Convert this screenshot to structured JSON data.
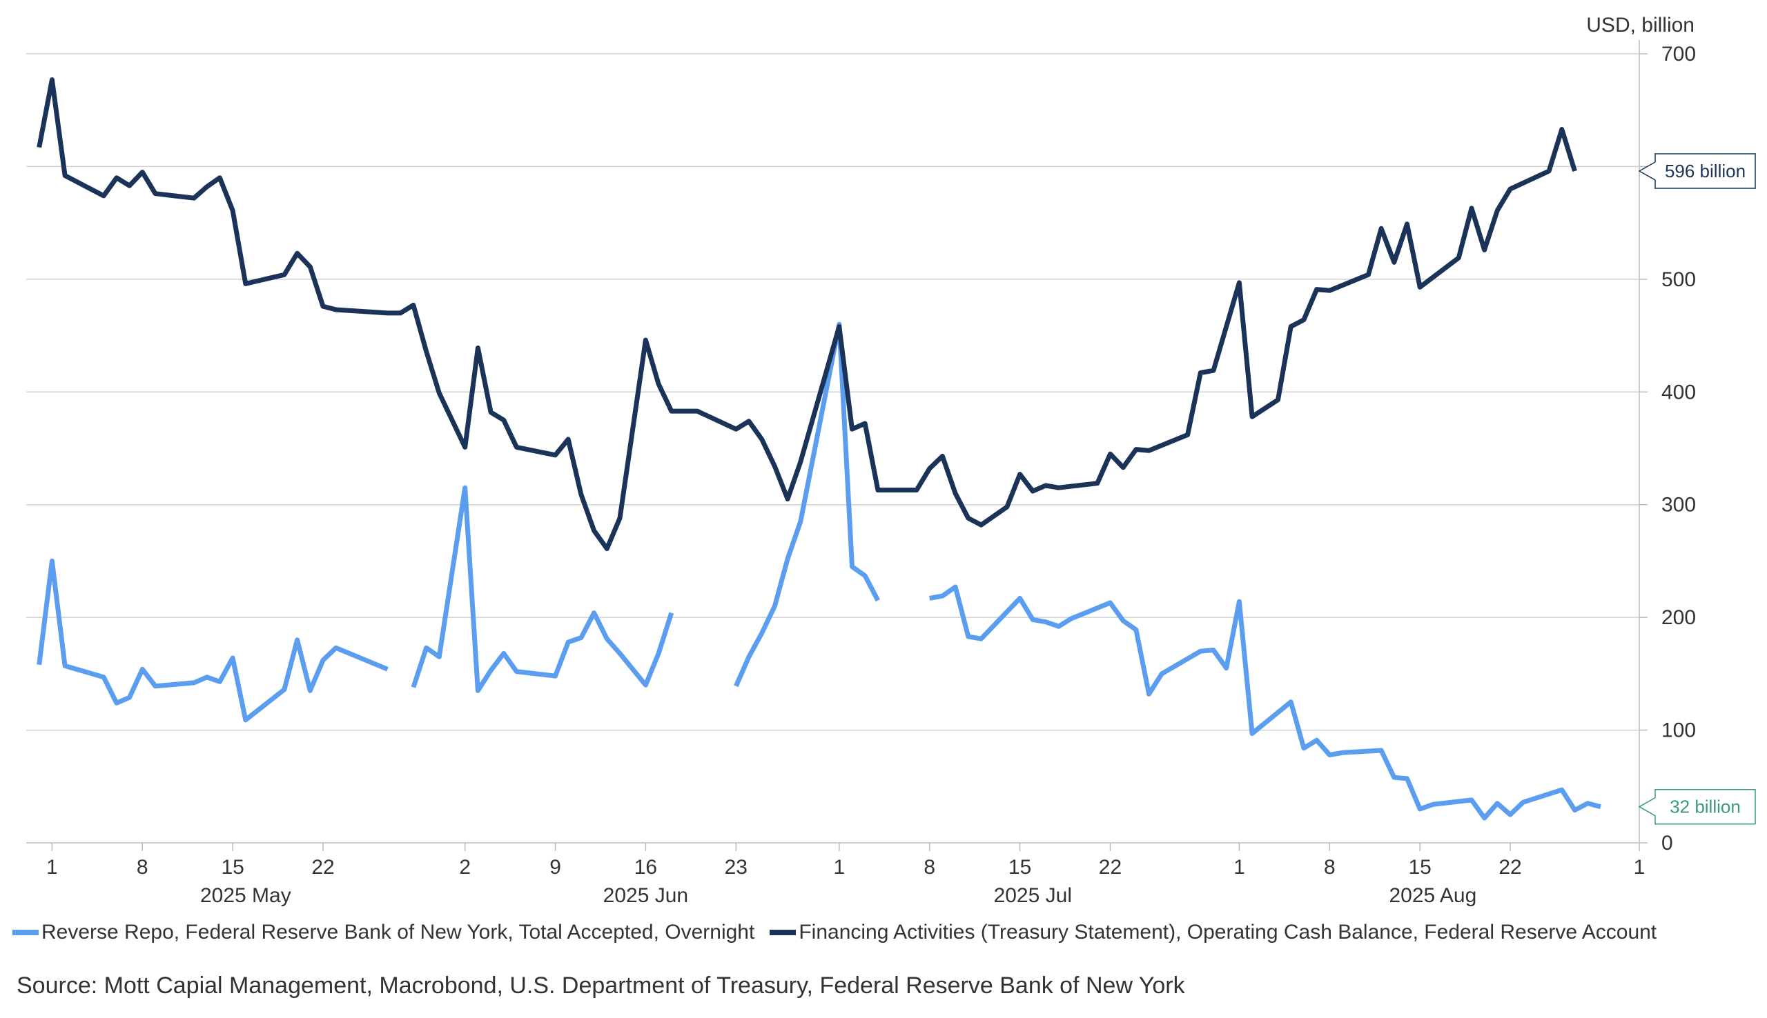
{
  "chart_data": {
    "type": "line",
    "y_unit_label": "USD, billion",
    "ylim": [
      0,
      700
    ],
    "y_ticks": [
      0,
      100,
      200,
      300,
      400,
      500,
      600,
      700
    ],
    "grid": true,
    "x_range": [
      "2025-04-29",
      "2025-09-01"
    ],
    "x_ticks": [
      {
        "date": "2025-05-01",
        "label": "1"
      },
      {
        "date": "2025-05-08",
        "label": "8"
      },
      {
        "date": "2025-05-15",
        "label": "15"
      },
      {
        "date": "2025-05-22",
        "label": "22"
      },
      {
        "date": "2025-06-02",
        "label": "2"
      },
      {
        "date": "2025-06-09",
        "label": "9"
      },
      {
        "date": "2025-06-16",
        "label": "16"
      },
      {
        "date": "2025-06-23",
        "label": "23"
      },
      {
        "date": "2025-07-01",
        "label": "1"
      },
      {
        "date": "2025-07-08",
        "label": "8"
      },
      {
        "date": "2025-07-15",
        "label": "15"
      },
      {
        "date": "2025-07-22",
        "label": "22"
      },
      {
        "date": "2025-08-01",
        "label": "1"
      },
      {
        "date": "2025-08-08",
        "label": "8"
      },
      {
        "date": "2025-08-15",
        "label": "15"
      },
      {
        "date": "2025-08-22",
        "label": "22"
      },
      {
        "date": "2025-09-01",
        "label": "1"
      }
    ],
    "month_labels": [
      {
        "date": "2025-05-16",
        "label": "2025 May"
      },
      {
        "date": "2025-06-16",
        "label": "2025 Jun"
      },
      {
        "date": "2025-07-16",
        "label": "2025 Jul"
      },
      {
        "date": "2025-08-16",
        "label": "2025 Aug"
      }
    ],
    "legend_position": "bottom",
    "series": [
      {
        "name": "Reverse Repo, Federal Reserve Bank of New York, Total Accepted, Overnight",
        "color": "#5b9ef0",
        "end_label": "32 billion",
        "end_label_color": "#3a9a80",
        "points": [
          [
            "2025-04-30",
            158
          ],
          [
            "2025-05-01",
            250
          ],
          [
            "2025-05-02",
            157
          ],
          [
            "2025-05-05",
            147
          ],
          [
            "2025-05-06",
            124
          ],
          [
            "2025-05-07",
            129
          ],
          [
            "2025-05-08",
            154
          ],
          [
            "2025-05-09",
            139
          ],
          [
            "2025-05-12",
            142
          ],
          [
            "2025-05-13",
            147
          ],
          [
            "2025-05-14",
            143
          ],
          [
            "2025-05-15",
            164
          ],
          [
            "2025-05-16",
            109
          ],
          [
            "2025-05-19",
            136
          ],
          [
            "2025-05-20",
            180
          ],
          [
            "2025-05-21",
            135
          ],
          [
            "2025-05-22",
            162
          ],
          [
            "2025-05-23",
            173
          ],
          [
            "2025-05-27",
            154
          ],
          null,
          [
            "2025-05-29",
            138
          ],
          [
            "2025-05-30",
            173
          ],
          [
            "2025-05-31",
            165
          ],
          [
            "2025-06-02",
            315
          ],
          [
            "2025-06-03",
            135
          ],
          [
            "2025-06-04",
            153
          ],
          [
            "2025-06-05",
            168
          ],
          [
            "2025-06-06",
            152
          ],
          [
            "2025-06-09",
            148
          ],
          [
            "2025-06-10",
            178
          ],
          [
            "2025-06-11",
            182
          ],
          [
            "2025-06-12",
            204
          ],
          [
            "2025-06-13",
            181
          ],
          [
            "2025-06-14",
            168
          ],
          [
            "2025-06-16",
            140
          ],
          [
            "2025-06-17",
            168
          ],
          [
            "2025-06-18",
            204
          ],
          null,
          [
            "2025-06-23",
            139
          ],
          [
            "2025-06-24",
            165
          ],
          [
            "2025-06-25",
            186
          ],
          [
            "2025-06-26",
            210
          ],
          [
            "2025-06-27",
            252
          ],
          [
            "2025-06-28",
            285
          ],
          [
            "2025-07-01",
            460
          ],
          [
            "2025-07-02",
            245
          ],
          [
            "2025-07-03",
            237
          ],
          [
            "2025-07-04",
            215
          ],
          null,
          [
            "2025-07-08",
            217
          ],
          [
            "2025-07-09",
            219
          ],
          [
            "2025-07-10",
            227
          ],
          [
            "2025-07-11",
            183
          ],
          [
            "2025-07-12",
            181
          ],
          [
            "2025-07-15",
            217
          ],
          [
            "2025-07-16",
            198
          ],
          [
            "2025-07-17",
            196
          ],
          [
            "2025-07-18",
            192
          ],
          [
            "2025-07-19",
            199
          ],
          [
            "2025-07-22",
            213
          ],
          [
            "2025-07-23",
            197
          ],
          [
            "2025-07-24",
            189
          ],
          [
            "2025-07-25",
            132
          ],
          [
            "2025-07-26",
            150
          ],
          [
            "2025-07-29",
            170
          ],
          [
            "2025-07-30",
            171
          ],
          [
            "2025-07-31",
            155
          ],
          [
            "2025-08-01",
            214
          ],
          [
            "2025-08-02",
            97
          ],
          [
            "2025-08-05",
            125
          ],
          [
            "2025-08-06",
            84
          ],
          [
            "2025-08-07",
            91
          ],
          [
            "2025-08-08",
            78
          ],
          [
            "2025-08-09",
            80
          ],
          [
            "2025-08-12",
            82
          ],
          [
            "2025-08-13",
            58
          ],
          [
            "2025-08-14",
            57
          ],
          [
            "2025-08-15",
            30
          ],
          [
            "2025-08-16",
            34
          ],
          [
            "2025-08-19",
            38
          ],
          [
            "2025-08-20",
            22
          ],
          [
            "2025-08-21",
            35
          ],
          [
            "2025-08-22",
            25
          ],
          [
            "2025-08-23",
            36
          ],
          [
            "2025-08-26",
            47
          ],
          [
            "2025-08-27",
            29
          ],
          [
            "2025-08-28",
            35
          ],
          [
            "2025-08-29",
            32
          ]
        ]
      },
      {
        "name": "Financing Activities (Treasury Statement), Operating Cash Balance, Federal Reserve Account",
        "color": "#1b3358",
        "end_label": "596 billion",
        "end_label_color": "#1b3358",
        "points": [
          [
            "2025-04-30",
            617
          ],
          [
            "2025-05-01",
            677
          ],
          [
            "2025-05-02",
            592
          ],
          [
            "2025-05-05",
            574
          ],
          [
            "2025-05-06",
            590
          ],
          [
            "2025-05-07",
            583
          ],
          [
            "2025-05-08",
            595
          ],
          [
            "2025-05-09",
            576
          ],
          [
            "2025-05-12",
            572
          ],
          [
            "2025-05-13",
            582
          ],
          [
            "2025-05-14",
            590
          ],
          [
            "2025-05-15",
            561
          ],
          [
            "2025-05-16",
            496
          ],
          [
            "2025-05-19",
            504
          ],
          [
            "2025-05-20",
            523
          ],
          [
            "2025-05-21",
            511
          ],
          [
            "2025-05-22",
            476
          ],
          [
            "2025-05-23",
            473
          ],
          [
            "2025-05-27",
            470
          ],
          [
            "2025-05-28",
            470
          ],
          [
            "2025-05-29",
            477
          ],
          [
            "2025-05-30",
            436
          ],
          [
            "2025-05-31",
            399
          ],
          [
            "2025-06-02",
            351
          ],
          [
            "2025-06-03",
            439
          ],
          [
            "2025-06-04",
            382
          ],
          [
            "2025-06-05",
            375
          ],
          [
            "2025-06-06",
            351
          ],
          [
            "2025-06-09",
            344
          ],
          [
            "2025-06-10",
            358
          ],
          [
            "2025-06-11",
            309
          ],
          [
            "2025-06-12",
            277
          ],
          [
            "2025-06-13",
            261
          ],
          [
            "2025-06-14",
            288
          ],
          [
            "2025-06-16",
            446
          ],
          [
            "2025-06-17",
            407
          ],
          [
            "2025-06-18",
            383
          ],
          [
            "2025-06-20",
            383
          ],
          [
            "2025-06-23",
            367
          ],
          [
            "2025-06-24",
            374
          ],
          [
            "2025-06-25",
            358
          ],
          [
            "2025-06-26",
            334
          ],
          [
            "2025-06-27",
            305
          ],
          [
            "2025-06-28",
            338
          ],
          [
            "2025-07-01",
            458
          ],
          [
            "2025-07-02",
            367
          ],
          [
            "2025-07-03",
            372
          ],
          [
            "2025-07-04",
            313
          ],
          [
            "2025-07-07",
            313
          ],
          [
            "2025-07-08",
            332
          ],
          [
            "2025-07-09",
            343
          ],
          [
            "2025-07-10",
            310
          ],
          [
            "2025-07-11",
            288
          ],
          [
            "2025-07-12",
            282
          ],
          [
            "2025-07-14",
            298
          ],
          [
            "2025-07-15",
            327
          ],
          [
            "2025-07-16",
            312
          ],
          [
            "2025-07-17",
            317
          ],
          [
            "2025-07-18",
            315
          ],
          [
            "2025-07-21",
            319
          ],
          [
            "2025-07-22",
            345
          ],
          [
            "2025-07-23",
            333
          ],
          [
            "2025-07-24",
            349
          ],
          [
            "2025-07-25",
            348
          ],
          [
            "2025-07-28",
            362
          ],
          [
            "2025-07-29",
            417
          ],
          [
            "2025-07-30",
            419
          ],
          [
            "2025-08-01",
            497
          ],
          [
            "2025-08-02",
            378
          ],
          [
            "2025-08-04",
            393
          ],
          [
            "2025-08-05",
            458
          ],
          [
            "2025-08-06",
            464
          ],
          [
            "2025-08-07",
            491
          ],
          [
            "2025-08-08",
            490
          ],
          [
            "2025-08-11",
            504
          ],
          [
            "2025-08-12",
            545
          ],
          [
            "2025-08-13",
            515
          ],
          [
            "2025-08-14",
            549
          ],
          [
            "2025-08-15",
            493
          ],
          [
            "2025-08-18",
            519
          ],
          [
            "2025-08-19",
            563
          ],
          [
            "2025-08-20",
            526
          ],
          [
            "2025-08-21",
            561
          ],
          [
            "2025-08-22",
            580
          ],
          [
            "2025-08-25",
            596
          ],
          [
            "2025-08-26",
            633
          ],
          [
            "2025-08-27",
            596
          ]
        ]
      }
    ]
  },
  "legend": [
    {
      "label": "Reverse Repo, Federal Reserve Bank of New York, Total Accepted, Overnight",
      "color": "#5b9ef0"
    },
    {
      "label": "Financing Activities (Treasury Statement), Operating Cash Balance, Federal Reserve Account",
      "color": "#1b3358"
    }
  ],
  "source": "Source: Mott Capial Management, Macrobond, U.S. Department of Treasury, Federal Reserve Bank of New York"
}
